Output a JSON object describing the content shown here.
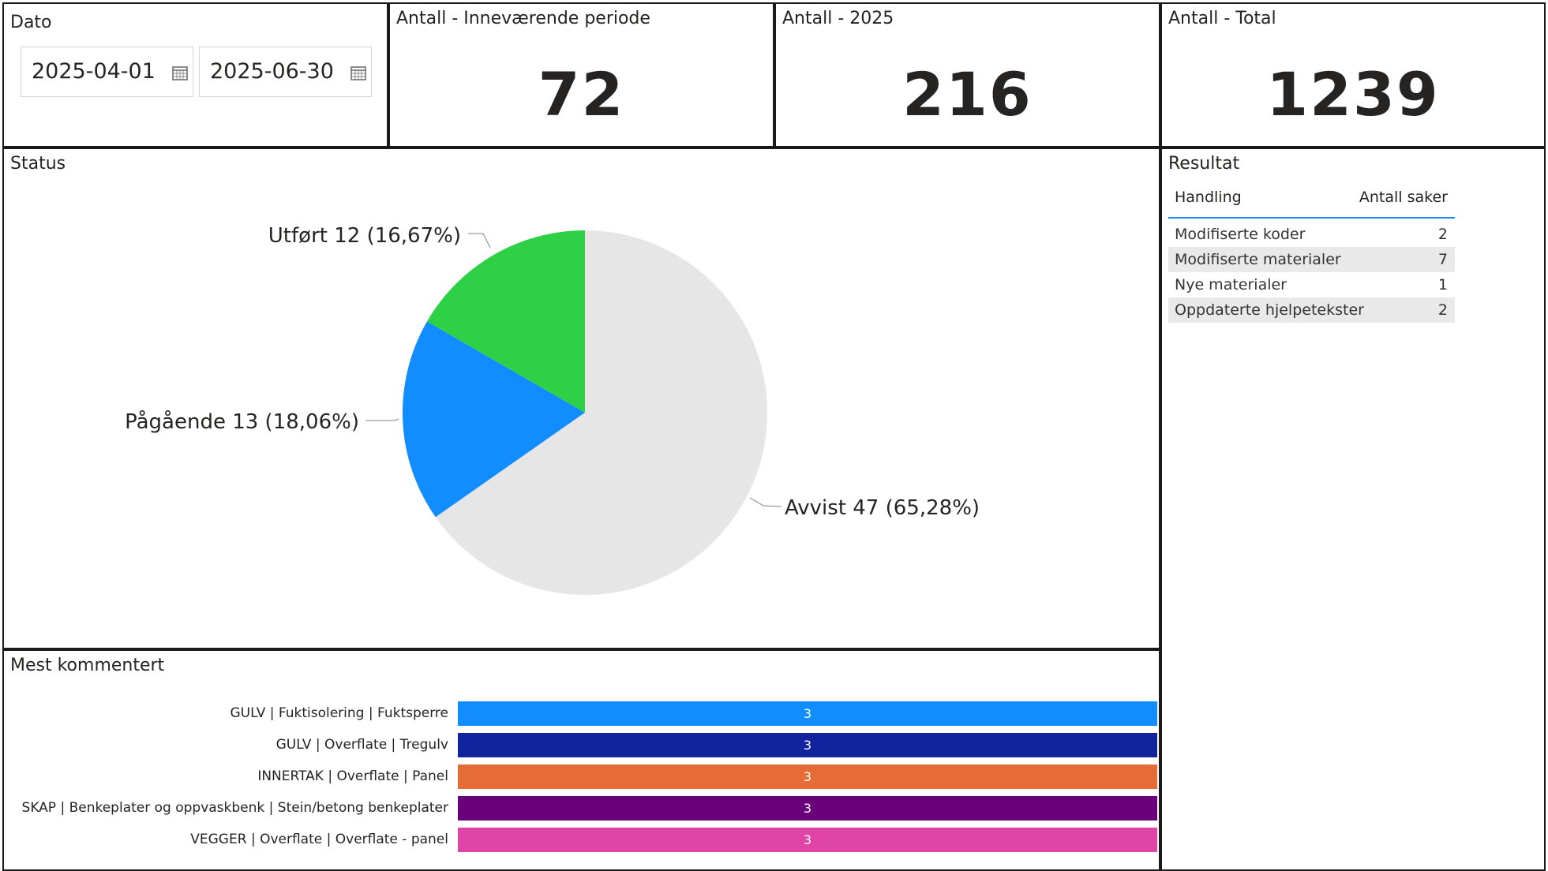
{
  "date_slicer": {
    "title": "Dato",
    "start": "2025-04-01",
    "end": "2025-06-30",
    "icon": "calendar-icon"
  },
  "kpis": [
    {
      "title": "Antall - Inneværende periode",
      "value": "72"
    },
    {
      "title": "Antall - 2025",
      "value": "216"
    },
    {
      "title": "Antall - Total",
      "value": "1239"
    }
  ],
  "status": {
    "title": "Status",
    "labels": {
      "utfort": "Utført 12 (16,67%)",
      "pagaende": "Pågående 13 (18,06%)",
      "avvist": "Avvist 47 (65,28%)"
    }
  },
  "resultat": {
    "title": "Resultat",
    "headers": {
      "handling": "Handling",
      "antall": "Antall saker"
    },
    "rows": [
      {
        "handling": "Modifiserte koder",
        "antall": "2"
      },
      {
        "handling": "Modifiserte materialer",
        "antall": "7"
      },
      {
        "handling": "Nye materialer",
        "antall": "1"
      },
      {
        "handling": "Oppdaterte hjelpetekster",
        "antall": "2"
      }
    ]
  },
  "mest_kommentert": {
    "title": "Mest kommentert",
    "labels": [
      "GULV | Fuktisolering | Fuktsperre",
      "GULV | Overflate | Tregulv",
      "INNERTAK | Overflate | Panel",
      "SKAP | Benkeplater og oppvaskbenk | Stein/betong benkeplater",
      "VEGGER | Overflate | Overflate - panel"
    ],
    "values": [
      "3",
      "3",
      "3",
      "3",
      "3"
    ]
  },
  "chart_data": [
    {
      "type": "pie",
      "title": "Status",
      "categories": [
        "Utført",
        "Pågående",
        "Avvist"
      ],
      "values": [
        12,
        13,
        47
      ],
      "percentages": [
        16.67,
        18.06,
        65.28
      ],
      "colors": [
        "#2ed146",
        "#118dff",
        "#e6e6e6"
      ]
    },
    {
      "type": "bar",
      "orientation": "horizontal",
      "title": "Mest kommentert",
      "categories": [
        "GULV | Fuktisolering | Fuktsperre",
        "GULV | Overflate | Tregulv",
        "INNERTAK | Overflate | Panel",
        "SKAP | Benkeplater og oppvaskbenk | Stein/betong benkeplater",
        "VEGGER | Overflate | Overflate - panel"
      ],
      "values": [
        3,
        3,
        3,
        3,
        3
      ],
      "colors": [
        "#118dff",
        "#12239e",
        "#e66c37",
        "#6b007b",
        "#e044a7"
      ]
    }
  ]
}
